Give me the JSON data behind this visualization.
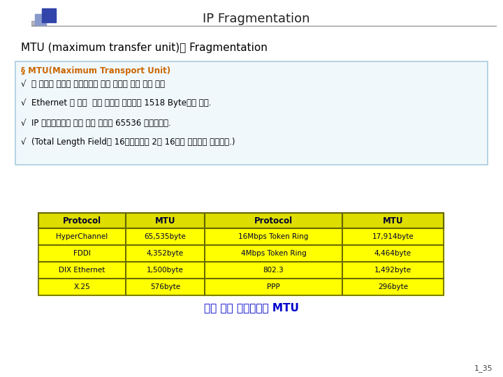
{
  "title": "IP Fragmentation",
  "subtitle": "MTU (maximum transfer unit)와 Fragmentation",
  "box_header": "§ MTU(Maximum Transport Unit)",
  "box_lines": [
    "√  두 노드간 물리적 네트워크에 대한 데이터 필드 최대 크기",
    "√  Ethernet 인 경우  최종 데이터 프레임이 1518 Byte까지 이다.",
    "√  IP 데이터그램의 최대 가능 크기는 65536 바이트이다.",
    "√  (Total Length Field가 16비트이먼로 2의 16승의 크기까지 가능하다.)"
  ],
  "table_headers": [
    "Protocol",
    "MTU",
    "Protocol",
    "MTU"
  ],
  "table_col1": [
    "HyperChannel",
    "FDDI",
    "DIX Ethernet",
    "X.25"
  ],
  "table_col2": [
    "65,535byte",
    "4,352byte",
    "1,500byte",
    "576byte"
  ],
  "table_col3": [
    "16Mbps Token Ring",
    "4Mbps Token Ring",
    "802.3",
    "PPP"
  ],
  "table_col4": [
    "17,914byte",
    "4,464byte",
    "1,492byte",
    "296byte"
  ],
  "table_caption": "서로 다른 네트워크의 MTU",
  "page_num": "1_35",
  "bg_color": "#ffffff",
  "title_color": "#222222",
  "subtitle_color": "#000000",
  "box_border_color": "#aaccdd",
  "box_bg_color": "#f0f8fc",
  "box_header_color": "#cc6600",
  "box_text_color": "#000000",
  "table_header_bg": "#dddd00",
  "table_header_text": "#000033",
  "table_body_bg": "#ffff00",
  "table_body_text": "#000033",
  "table_border_color": "#666600",
  "caption_color": "#0000cc",
  "page_color": "#444444",
  "icon_dark_blue": "#3344aa",
  "icon_light_blue": "#8899cc",
  "icon_gray": "#888899",
  "header_line_color": "#999999"
}
